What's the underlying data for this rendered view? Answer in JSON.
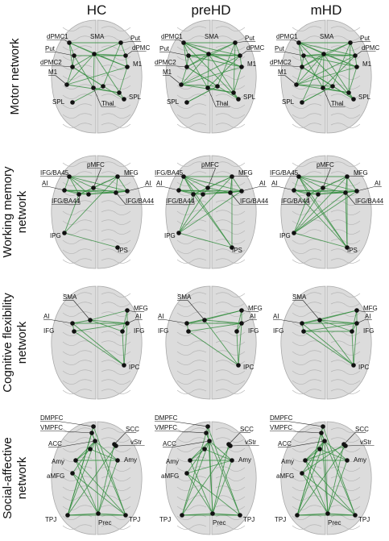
{
  "columns": [
    "HC",
    "preHD",
    "mHD"
  ],
  "rows": [
    {
      "title_lines": [
        "Motor network"
      ],
      "labels": [
        "dPMC1",
        "Put",
        "dPMC2",
        "M1",
        "SPL",
        "SMA",
        "Put",
        "dPMC",
        "M1",
        "SPL",
        "Thal"
      ]
    },
    {
      "title_lines": [
        "Working memory",
        "network"
      ],
      "labels": [
        "IFG/BA45",
        "AI",
        "IFG/BA44",
        "IPG",
        "pMFC",
        "MFG",
        "AI",
        "IFG/BA44",
        "IPS"
      ]
    },
    {
      "title_lines": [
        "Cognitive flexibility",
        "network"
      ],
      "labels": [
        "SMA",
        "AI",
        "IFG",
        "MFG",
        "AI",
        "IFG",
        "IPC"
      ]
    },
    {
      "title_lines": [
        "Social-affective",
        "network"
      ],
      "labels": [
        "DMPFC",
        "VMPFC",
        "ACC",
        "Amy",
        "aMFG",
        "TPJ",
        "SCC",
        "vStr",
        "Amy",
        "TPJ",
        "Prec"
      ]
    }
  ],
  "colors": {
    "edge": "#2e8b3a",
    "node": "#111111",
    "brain": "#dcdcdc"
  }
}
